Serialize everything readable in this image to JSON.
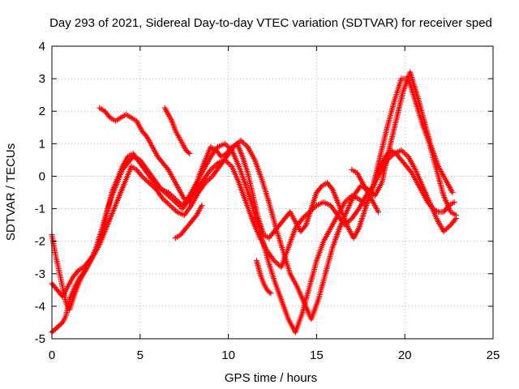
{
  "chart_data": {
    "type": "scatter",
    "title": "Day 293 of 2021, Sidereal Day-to-day VTEC variation (SDTVAR) for receiver sped",
    "xlabel": "GPS time / hours",
    "ylabel": "SDTVAR / TECUs",
    "xlim": [
      0,
      25
    ],
    "ylim": [
      -5,
      4
    ],
    "xticks": [
      0,
      5,
      10,
      15,
      20,
      25
    ],
    "yticks": [
      -5,
      -4,
      -3,
      -2,
      -1,
      0,
      1,
      2,
      3,
      4
    ],
    "grid": true,
    "marker": "+",
    "color": "#ff0000",
    "series": [
      {
        "x": [
          0.0,
          0.2,
          0.4,
          0.6,
          0.8,
          1.0,
          1.3,
          1.6,
          1.9,
          2.2,
          2.5,
          2.8,
          3.1,
          3.4,
          3.7,
          4.0,
          4.3,
          4.6,
          5.0,
          5.4,
          5.8,
          6.2,
          6.6,
          7.0,
          7.4,
          7.8,
          8.2,
          8.6,
          9.0,
          9.4,
          9.8,
          10.2,
          10.6,
          11.0,
          11.4,
          11.8,
          12.2,
          12.6,
          13.0,
          13.4,
          13.8,
          14.2,
          14.6,
          15.0,
          15.4,
          15.8,
          16.2,
          16.6,
          17.0,
          17.4,
          17.8,
          18.2,
          18.6,
          19.0,
          19.4,
          19.8,
          20.2,
          20.6,
          21.0,
          21.4,
          21.8,
          22.2,
          22.6,
          22.9
        ],
        "y": [
          -4.8,
          -4.7,
          -4.6,
          -4.5,
          -4.3,
          -3.8,
          -3.4,
          -3.1,
          -2.9,
          -2.6,
          -2.2,
          -1.7,
          -1.1,
          -0.6,
          -0.2,
          0.2,
          0.4,
          0.6,
          0.5,
          0.2,
          -0.1,
          -0.4,
          -0.6,
          -0.8,
          -1.0,
          -0.7,
          -0.4,
          -0.1,
          0.2,
          0.4,
          0.5,
          0.3,
          -0.2,
          -0.8,
          -1.4,
          -1.9,
          -2.3,
          -2.6,
          -2.8,
          -2.2,
          -1.6,
          -1.3,
          -1.1,
          -0.9,
          -0.8,
          -0.9,
          -1.2,
          -1.5,
          -1.3,
          -1.0,
          -0.6,
          -0.3,
          0.1,
          0.5,
          0.7,
          0.8,
          0.6,
          0.2,
          -0.3,
          -0.8,
          -1.3,
          -1.7,
          -1.5,
          -1.3
        ]
      },
      {
        "x": [
          0.0,
          0.2,
          0.4,
          0.6,
          0.8,
          1.0,
          1.3,
          1.6,
          1.9,
          2.2,
          2.5,
          2.8,
          3.1,
          3.4,
          3.7,
          4.0,
          4.3,
          4.6,
          5.0,
          5.4,
          5.8,
          6.2,
          6.6,
          7.0,
          7.4,
          7.8,
          8.2,
          8.6,
          9.0,
          9.4,
          9.8,
          10.2,
          10.6,
          11.0,
          11.4,
          11.8,
          12.2,
          12.6,
          13.0,
          13.4,
          13.8,
          14.2,
          14.6,
          15.0,
          15.4,
          15.8,
          16.2,
          16.6,
          17.0,
          17.4,
          17.8,
          18.2,
          18.6,
          19.0,
          19.4,
          19.8,
          20.2,
          20.6,
          21.0,
          21.4,
          21.8,
          22.2,
          22.6,
          22.9
        ],
        "y": [
          -1.8,
          -2.4,
          -2.9,
          -3.4,
          -3.9,
          -4.1,
          -3.6,
          -3.2,
          -2.9,
          -2.6,
          -2.3,
          -1.9,
          -1.2,
          -0.5,
          -0.1,
          0.3,
          0.6,
          0.7,
          0.4,
          0.1,
          -0.2,
          -0.4,
          -0.5,
          -0.7,
          -0.9,
          -0.6,
          -0.2,
          0.2,
          0.6,
          0.9,
          1.0,
          0.8,
          0.3,
          -0.3,
          -1.0,
          -1.7,
          -2.5,
          -3.2,
          -3.8,
          -4.4,
          -4.8,
          -4.2,
          -3.4,
          -2.6,
          -2.0,
          -1.6,
          -1.2,
          -0.8,
          -0.6,
          -0.7,
          -0.9,
          -0.3,
          0.6,
          1.5,
          2.3,
          3.0,
          3.0,
          2.3,
          1.6,
          1.0,
          0.2,
          -0.6,
          -1.1,
          -1.2
        ]
      },
      {
        "x": [
          0.0,
          0.3,
          0.6,
          0.9,
          1.2,
          1.5,
          1.8,
          2.1,
          2.4,
          2.7,
          3.0,
          3.3,
          3.6,
          3.9,
          4.2,
          4.5,
          4.8,
          5.1,
          5.5,
          5.9,
          6.3,
          6.7,
          7.1,
          7.5,
          7.9,
          8.3,
          8.7,
          9.1,
          9.5,
          9.9,
          10.3,
          10.7,
          11.1,
          11.5,
          11.9,
          12.3,
          12.7,
          13.1,
          13.5,
          13.9,
          14.3,
          14.7,
          15.1,
          15.5,
          15.9,
          16.3,
          16.7,
          17.1,
          17.5,
          17.9,
          18.3,
          18.7,
          19.1,
          19.5,
          19.9,
          20.3,
          20.7,
          21.1,
          21.5,
          21.9,
          22.3,
          22.7
        ],
        "y": [
          -3.3,
          -3.5,
          -3.7,
          -3.4,
          -3.1,
          -2.9,
          -2.8,
          -2.6,
          -2.4,
          -2.1,
          -1.7,
          -1.3,
          -0.9,
          -0.5,
          -0.1,
          0.3,
          0.2,
          0.0,
          -0.2,
          -0.4,
          -0.7,
          -0.9,
          -1.1,
          -1.2,
          -0.9,
          -0.5,
          -0.2,
          0.0,
          0.3,
          0.6,
          0.9,
          1.1,
          0.9,
          0.5,
          -0.1,
          -0.8,
          -1.6,
          -2.3,
          -3.0,
          -3.4,
          -3.9,
          -4.4,
          -3.8,
          -3.0,
          -2.2,
          -1.6,
          -1.1,
          -0.6,
          -0.3,
          -0.4,
          -0.6,
          -0.2,
          0.8,
          1.7,
          2.6,
          3.2,
          2.5,
          1.7,
          0.9,
          0.3,
          -0.1,
          -0.5
        ]
      },
      {
        "x": [
          2.7,
          3.0,
          3.3,
          3.6,
          3.9,
          4.2,
          4.5,
          4.8,
          5.1,
          5.4,
          5.7,
          6.0,
          6.3,
          6.6,
          6.9,
          7.2,
          7.5,
          7.8,
          8.1,
          8.4,
          8.7,
          9.0,
          9.3,
          9.6,
          9.9,
          10.2,
          10.5,
          10.8,
          11.1,
          11.4,
          11.7,
          12.0,
          12.3,
          12.6,
          12.9,
          13.2,
          13.5,
          13.8,
          14.1,
          14.4,
          14.7,
          15.0,
          15.3,
          15.6,
          15.9,
          16.2,
          16.5,
          16.8,
          17.1,
          17.4,
          17.7,
          18.0,
          18.3,
          18.6,
          18.9,
          19.2,
          19.5,
          19.8,
          20.1,
          20.4,
          20.7,
          21.0,
          21.3,
          21.6,
          21.9,
          22.2,
          22.5,
          22.8
        ],
        "y": [
          2.1,
          2.0,
          1.8,
          1.7,
          1.8,
          1.9,
          1.8,
          1.7,
          1.4,
          1.2,
          0.9,
          0.6,
          0.4,
          0.2,
          -0.1,
          -0.4,
          -0.7,
          -0.8,
          -0.4,
          0.1,
          0.5,
          0.9,
          0.8,
          0.6,
          0.7,
          0.9,
          1.0,
          0.6,
          0.1,
          -0.6,
          -1.3,
          -1.8,
          -1.9,
          -1.7,
          -1.5,
          -1.3,
          -1.1,
          -1.4,
          -1.7,
          -1.5,
          -1.0,
          -0.5,
          -0.3,
          -0.2,
          -0.4,
          -0.8,
          -1.2,
          -1.6,
          -1.9,
          -1.6,
          -1.1,
          -0.6,
          -0.2,
          0.3,
          0.6,
          0.8,
          0.7,
          0.5,
          0.3,
          0.1,
          -0.2,
          -0.5,
          -0.8,
          -1.0,
          -1.1,
          -1.1,
          -0.9,
          -0.8
        ]
      },
      {
        "x": [
          6.4,
          6.6,
          6.8,
          7.0,
          7.2,
          7.4,
          7.6,
          7.8
        ],
        "y": [
          2.1,
          1.9,
          1.7,
          1.4,
          1.2,
          1.0,
          0.8,
          0.7
        ]
      },
      {
        "x": [
          7.0,
          7.3,
          7.6,
          7.9,
          8.2,
          8.5
        ],
        "y": [
          -1.9,
          -1.8,
          -1.6,
          -1.4,
          -1.2,
          -0.9
        ]
      },
      {
        "x": [
          17.0,
          17.3,
          17.6,
          17.9,
          18.2,
          18.5
        ],
        "y": [
          0.2,
          0.1,
          -0.2,
          -0.5,
          -0.8,
          -1.1
        ]
      },
      {
        "x": [
          11.6,
          11.8,
          12.0,
          12.2,
          12.4
        ],
        "y": [
          -2.6,
          -3.0,
          -3.3,
          -3.5,
          -3.6
        ]
      }
    ]
  }
}
